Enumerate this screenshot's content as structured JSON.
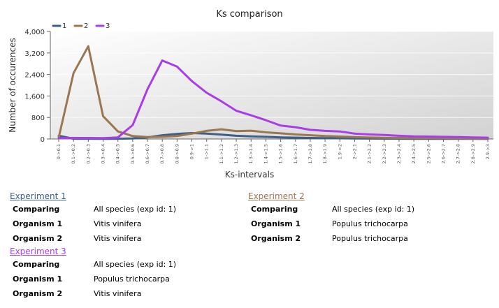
{
  "chart_data": {
    "type": "line",
    "title": "Ks comparison",
    "xlabel": "Ks-intervals",
    "ylabel": "Number of occurences",
    "ylim": [
      0,
      4000
    ],
    "yticks": [
      "0",
      "800",
      "1,600",
      "2,400",
      "3,200",
      "4,000"
    ],
    "ytick_values": [
      0,
      800,
      1600,
      2400,
      3200,
      4000
    ],
    "grid": true,
    "legend_position": "top-left",
    "categories": [
      "0->0.1",
      "0.1->0.2",
      "0.2->0.3",
      "0.3->0.4",
      "0.4->0.5",
      "0.5->0.6",
      "0.6->0.7",
      "0.7->0.8",
      "0.8->0.9",
      "0.9->1",
      "1->1.1",
      "1.1->1.2",
      "1.2->1.3",
      "1.3->1.4",
      "1.4->1.5",
      "1.5->1.6",
      "1.6->1.7",
      "1.7->1.8",
      "1.8->1.9",
      "1.9->2",
      "2->2.1",
      "2.1->2.2",
      "2.2->2.3",
      "2.3->2.4",
      "2.4->2.5",
      "2.5->2.6",
      "2.6->2.7",
      "2.7->2.8",
      "2.8->2.9",
      "2.9->3"
    ],
    "series": [
      {
        "name": "1",
        "color": "#3d5e87",
        "values": [
          120,
          10,
          10,
          5,
          10,
          20,
          60,
          140,
          190,
          220,
          200,
          160,
          120,
          100,
          80,
          60,
          50,
          40,
          30,
          25,
          20,
          15,
          12,
          10,
          8,
          6,
          5,
          5,
          4,
          3
        ]
      },
      {
        "name": "2",
        "color": "#9b7653",
        "values": [
          50,
          2450,
          3450,
          850,
          280,
          110,
          70,
          80,
          110,
          200,
          300,
          360,
          290,
          310,
          250,
          210,
          170,
          140,
          110,
          90,
          70,
          55,
          45,
          40,
          35,
          30,
          28,
          25,
          22,
          20
        ]
      },
      {
        "name": "3",
        "color": "#a93de8",
        "values": [
          30,
          40,
          40,
          30,
          60,
          520,
          1850,
          2920,
          2690,
          2150,
          1720,
          1400,
          1050,
          880,
          700,
          500,
          440,
          340,
          300,
          280,
          200,
          170,
          150,
          120,
          100,
          90,
          80,
          70,
          60,
          50
        ]
      }
    ]
  },
  "experiments": [
    {
      "link": "Experiment 1",
      "color": "#3d5e87",
      "rows": [
        {
          "key": "Comparing",
          "value": "All species (exp id: 1)"
        },
        {
          "key": "Organism 1",
          "value": "Vitis vinifera"
        },
        {
          "key": "Organism 2",
          "value": "Vitis vinifera"
        }
      ]
    },
    {
      "link": "Experiment 2",
      "color": "#9b7653",
      "rows": [
        {
          "key": "Comparing",
          "value": "All species (exp id: 1)"
        },
        {
          "key": "Organism 1",
          "value": "Populus trichocarpa"
        },
        {
          "key": "Organism 2",
          "value": "Populus trichocarpa"
        }
      ]
    },
    {
      "link": "Experiment 3",
      "color": "#a93de8",
      "rows": [
        {
          "key": "Comparing",
          "value": "All species (exp id: 1)"
        },
        {
          "key": "Organism 1",
          "value": "Populus trichocarpa"
        },
        {
          "key": "Organism 2",
          "value": "Vitis vinifera"
        }
      ]
    }
  ]
}
